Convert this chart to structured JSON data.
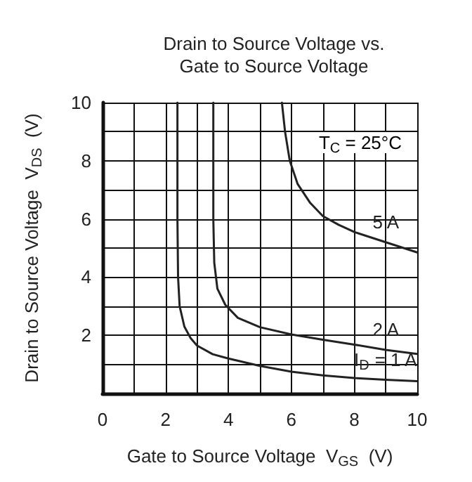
{
  "chart_data": {
    "type": "line",
    "title": "Drain to Source Voltage vs.\nGate to Source Voltage",
    "xlabel": "Gate to Source Voltage  V$_{GS}$  (V)",
    "ylabel": "Drain to Source Voltage  V$_{DS}$  (V)",
    "annotations": [
      "T$_{C}$ = 25°C"
    ],
    "marker": "none",
    "line_style": "solid",
    "grid": true,
    "legend": false,
    "xlim": [
      0,
      10
    ],
    "ylim": [
      0,
      10
    ],
    "xticks": [
      0,
      {
        "value": 1,
        "label": null
      },
      2,
      {
        "value": 3,
        "label": null
      },
      4,
      {
        "value": 5,
        "label": null
      },
      6,
      {
        "value": 7,
        "label": null
      },
      8,
      {
        "value": 9,
        "label": null
      },
      10
    ],
    "yticks": [
      {
        "value": 0,
        "label": null
      },
      {
        "value": 1,
        "label": null
      },
      2,
      {
        "value": 3,
        "label": null
      },
      4,
      {
        "value": 5,
        "label": null
      },
      6,
      {
        "value": 7,
        "label": null
      },
      8,
      {
        "value": 9,
        "label": null
      },
      10
    ],
    "series": [
      {
        "name": "5 A",
        "color": "#222222",
        "x": [
          5.7,
          5.8,
          5.95,
          6.2,
          6.6,
          7,
          7.5,
          8,
          9,
          10
        ],
        "values": [
          10,
          9,
          8,
          7.2,
          6.55,
          6.1,
          5.8,
          5.55,
          5.2,
          4.85
        ]
      },
      {
        "name": "2 A",
        "color": "#222222",
        "x": [
          3.52,
          3.52,
          3.55,
          3.65,
          3.9,
          4.3,
          5,
          6,
          7,
          8,
          9,
          10
        ],
        "values": [
          10,
          6,
          4.5,
          3.6,
          3.05,
          2.6,
          2.28,
          2.03,
          1.85,
          1.68,
          1.5,
          1.36
        ]
      },
      {
        "name": "I$_{D}$ = 1 A",
        "color": "#222222",
        "x": [
          2.38,
          2.38,
          2.4,
          2.45,
          2.6,
          2.8,
          3,
          3.5,
          4,
          5,
          6,
          7,
          8,
          9,
          10
        ],
        "values": [
          10,
          6,
          4,
          3,
          2.3,
          1.9,
          1.65,
          1.35,
          1.2,
          0.95,
          0.75,
          0.62,
          0.53,
          0.47,
          0.42
        ]
      }
    ]
  }
}
